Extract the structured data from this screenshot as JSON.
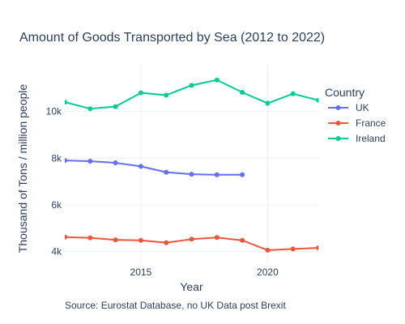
{
  "chart_data": {
    "type": "line",
    "title": "Amount of Goods Transported by Sea (2012 to 2022)",
    "xlabel": "Year",
    "ylabel": "Thousand of Tons / million people",
    "xlim": [
      2012,
      2022
    ],
    "ylim": [
      3500,
      12000
    ],
    "x_ticks": [
      2015,
      2020
    ],
    "y_ticks": [
      4000,
      6000,
      8000,
      10000
    ],
    "y_tick_labels": [
      "4k",
      "6k",
      "8k",
      "10k"
    ],
    "grid": true,
    "legend": {
      "title": "Country",
      "position": "right"
    },
    "annotation": "Source: Eurostat Database, no UK Data post Brexit",
    "series": [
      {
        "name": "UK",
        "color": "#636efa",
        "x": [
          2012,
          2013,
          2014,
          2015,
          2016,
          2017,
          2018,
          2019
        ],
        "values": [
          7900,
          7870,
          7800,
          7650,
          7400,
          7310,
          7290,
          7290
        ]
      },
      {
        "name": "France",
        "color": "#ef553b",
        "x": [
          2012,
          2013,
          2014,
          2015,
          2016,
          2017,
          2018,
          2019,
          2020,
          2021,
          2022
        ],
        "values": [
          4620,
          4590,
          4500,
          4480,
          4380,
          4530,
          4600,
          4480,
          4060,
          4110,
          4160
        ]
      },
      {
        "name": "Ireland",
        "color": "#00cc96",
        "x": [
          2012,
          2013,
          2014,
          2015,
          2016,
          2017,
          2018,
          2019,
          2020,
          2021,
          2022
        ],
        "values": [
          10400,
          10120,
          10210,
          10800,
          10700,
          11120,
          11350,
          10820,
          10350,
          10760,
          10480
        ]
      }
    ]
  }
}
